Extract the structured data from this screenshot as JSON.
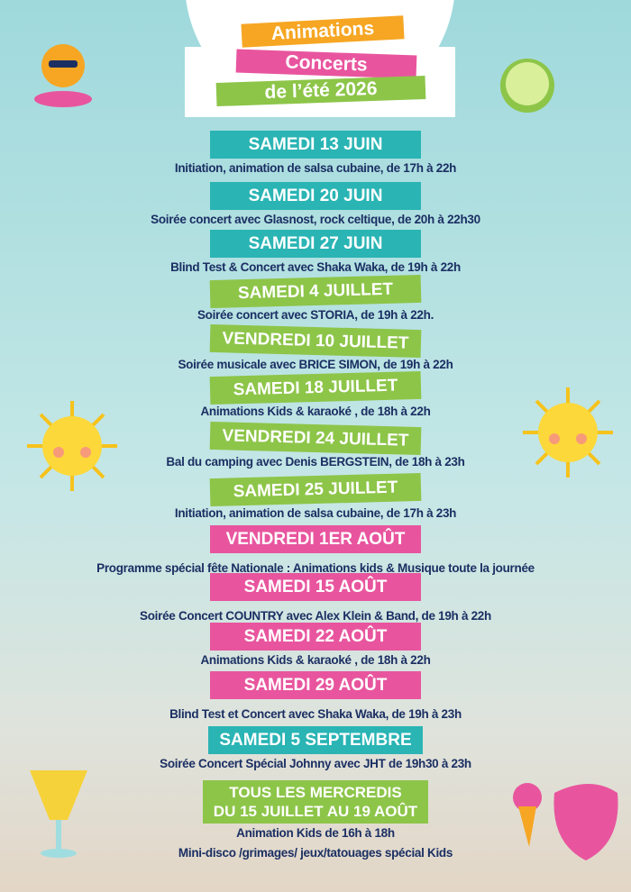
{
  "header": {
    "lines": [
      "Animations",
      "Concerts",
      "de l’été 2026"
    ]
  },
  "events": [
    {
      "date": [
        "SAMEDI 13 JUIN"
      ],
      "color": "#2ab4b4",
      "details": [
        "Initiation, animation de salsa cubaine, de 17h à 22h"
      ]
    },
    {
      "date": [
        "SAMEDI 20 JUIN"
      ],
      "color": "#2ab4b4",
      "details": [
        "Soirée concert avec Glasnost, rock celtique, de 20h à 22h30"
      ]
    },
    {
      "date": [
        "SAMEDI 27 JUIN"
      ],
      "color": "#2ab4b4",
      "details": [
        "Blind Test & Concert avec Shaka Waka, de 19h à 22h"
      ]
    },
    {
      "date": [
        "SAMEDI 4 JUILLET"
      ],
      "color": "#8dc549",
      "details": [
        "Soirée concert avec STORIA, de 19h à 22h."
      ]
    },
    {
      "date": [
        "VENDREDI 10 JUILLET"
      ],
      "color": "#8dc549",
      "details": [
        "Soirée musicale avec BRICE SIMON, de 19h à 22h"
      ]
    },
    {
      "date": [
        "SAMEDI 18 JUILLET"
      ],
      "color": "#8dc549",
      "details": [
        "Animations Kids & karaoké , de 18h à 22h"
      ]
    },
    {
      "date": [
        "VENDREDI 24 JUILLET"
      ],
      "color": "#8dc549",
      "details": [
        "Bal du camping avec Denis BERGSTEIN, de 18h à 23h"
      ]
    },
    {
      "date": [
        "SAMEDI 25 JUILLET"
      ],
      "color": "#8dc549",
      "details": [
        "Initiation, animation de salsa cubaine, de 17h à 23h"
      ]
    },
    {
      "date": [
        "VENDREDI 1ER AOÛT"
      ],
      "color": "#e8559e",
      "details": [
        "Programme spécial fête Nationale : Animations kids & Musique toute la journée"
      ]
    },
    {
      "date": [
        "SAMEDI 15 AOÛT"
      ],
      "color": "#e8559e",
      "details": [
        "Soirée Concert COUNTRY avec Alex Klein & Band, de 19h à 22h"
      ]
    },
    {
      "date": [
        "SAMEDI 22 AOÛT"
      ],
      "color": "#e8559e",
      "details": [
        "Animations Kids & karaoké , de 18h à 22h"
      ]
    },
    {
      "date": [
        "SAMEDI 29 AOÛT"
      ],
      "color": "#e8559e",
      "details": [
        "Blind Test et Concert avec Shaka Waka, de 19h à 23h"
      ]
    },
    {
      "date": [
        "SAMEDI 5 SEPTEMBRE"
      ],
      "color": "#2ab4b4",
      "details": [
        "Soirée Concert Spécial Johnny avec JHT de 19h30 à 23h"
      ]
    },
    {
      "date": [
        "TOUS LES MERCREDIS",
        "DU 15 JUILLET AU 19 AOÛT"
      ],
      "color": "#8dc549",
      "details": [
        "Animation Kids de  16h à 18h",
        "Mini-disco /grimages/ jeux/tatouages spécial Kids"
      ]
    }
  ]
}
